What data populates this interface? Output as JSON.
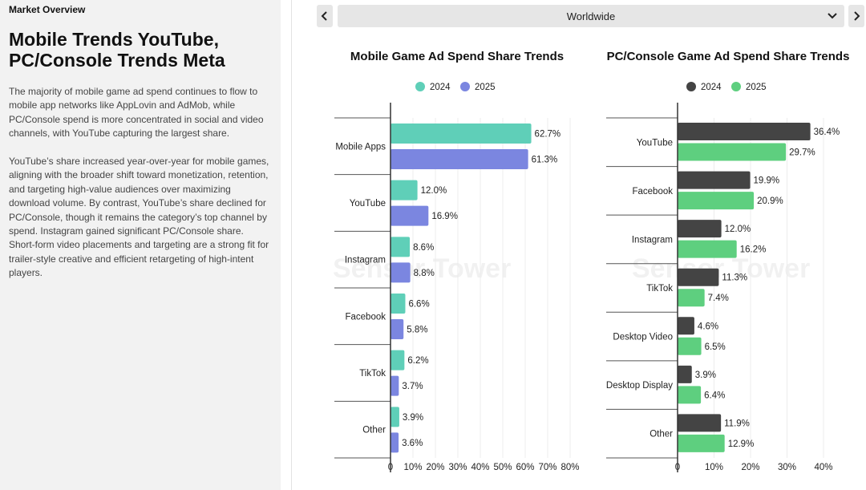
{
  "sidebar": {
    "section_label": "Market Overview",
    "title": "Mobile Trends YouTube, PC/Console Trends Meta",
    "paragraph_1": "The majority of mobile game ad spend continues to flow to mobile app networks like AppLovin and AdMob, while PC/Console spend is more concentrated in social and video channels, with YouTube capturing the largest share.",
    "paragraph_2": "YouTube’s share increased year-over-year for mobile games, aligning with the broader shift toward monetization, retention, and targeting high-value audiences over maximizing download volume. By contrast, YouTube’s share declined for PC/Console, though it remains the category’s top channel by spend. Instagram gained significant PC/Console share. Short-form video placements and targeting are a strong fit for trailer-style creative and efficient retargeting of high-intent players."
  },
  "controls": {
    "region": "Worldwide",
    "prev_icon": "chevron-left-icon",
    "next_icon": "chevron-right-icon",
    "dropdown_icon": "chevron-down-icon"
  },
  "watermark": "Sensor Tower",
  "chart_data": [
    {
      "type": "bar",
      "orientation": "horizontal",
      "title": "Mobile Game Ad Spend Share Trends",
      "categories": [
        "Mobile Apps",
        "YouTube",
        "Instagram",
        "Facebook",
        "TikTok",
        "Other"
      ],
      "series": [
        {
          "name": "2024",
          "color": "#5fcfb8",
          "values": [
            62.7,
            12.0,
            8.6,
            6.6,
            6.2,
            3.9
          ]
        },
        {
          "name": "2025",
          "color": "#7b86e0",
          "values": [
            61.3,
            16.9,
            8.8,
            5.8,
            3.7,
            3.6
          ]
        }
      ],
      "xlim": [
        0,
        80
      ],
      "ticks": [
        "0",
        "10%",
        "20%",
        "30%",
        "40%",
        "50%",
        "60%",
        "70%",
        "80%"
      ],
      "grid": true,
      "legend": "top-center"
    },
    {
      "type": "bar",
      "orientation": "horizontal",
      "title": "PC/Console Game Ad Spend Share Trends",
      "categories": [
        "YouTube",
        "Facebook",
        "Instagram",
        "TikTok",
        "Desktop Video",
        "Desktop Display",
        "Other"
      ],
      "series": [
        {
          "name": "2024",
          "color": "#444444",
          "values": [
            36.4,
            19.9,
            12.0,
            11.3,
            4.6,
            3.9,
            11.9
          ]
        },
        {
          "name": "2025",
          "color": "#5ecf7f",
          "values": [
            29.7,
            20.9,
            16.2,
            7.4,
            6.5,
            6.4,
            12.9
          ]
        }
      ],
      "xlim": [
        0,
        40
      ],
      "ticks": [
        "0",
        "10%",
        "20%",
        "30%",
        "40%"
      ],
      "grid": true,
      "legend": "top-center"
    }
  ]
}
